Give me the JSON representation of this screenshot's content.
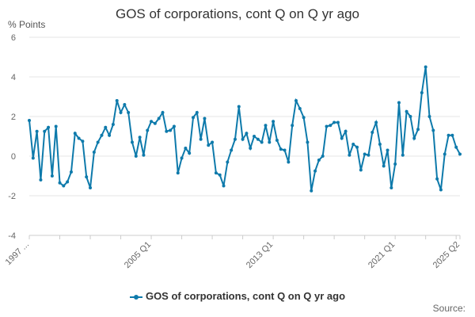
{
  "chart_data": {
    "type": "line",
    "title": "GOS of corporations, cont Q on Q yr ago",
    "ylabel": "% Points",
    "ylim": [
      -4,
      6
    ],
    "yticks": [
      -4,
      -2,
      0,
      2,
      4,
      6
    ],
    "grid": true,
    "color": "#0e7aab",
    "x_tick_labels": [
      "1997 ...",
      "2005 Q1",
      "2013 Q1",
      "2021 Q1",
      "2025 Q2"
    ],
    "x_tick_indices": [
      0,
      32,
      64,
      96,
      113
    ],
    "series": [
      {
        "name": "GOS of corporations, cont Q on Q yr ago",
        "values": [
          1.8,
          -0.1,
          1.25,
          -1.2,
          1.25,
          1.45,
          -1.0,
          1.5,
          -1.35,
          -1.5,
          -1.3,
          -0.8,
          1.15,
          0.9,
          0.75,
          -1.05,
          -1.6,
          0.2,
          0.7,
          1.05,
          1.45,
          1.05,
          1.6,
          2.8,
          2.2,
          2.6,
          2.2,
          0.7,
          0.0,
          0.95,
          0.05,
          1.3,
          1.75,
          1.65,
          1.9,
          2.2,
          1.25,
          1.3,
          1.5,
          -0.85,
          -0.1,
          0.4,
          0.15,
          1.95,
          2.2,
          0.85,
          1.9,
          0.55,
          0.7,
          -0.85,
          -0.95,
          -1.5,
          -0.3,
          0.3,
          0.85,
          2.5,
          0.85,
          1.15,
          0.4,
          1.0,
          0.85,
          0.7,
          1.55,
          0.7,
          1.75,
          0.8,
          0.35,
          0.3,
          -0.3,
          1.55,
          2.8,
          2.4,
          1.95,
          0.7,
          -1.75,
          -0.75,
          -0.2,
          0.0,
          1.5,
          1.55,
          1.7,
          1.7,
          0.9,
          1.25,
          0.05,
          0.6,
          0.45,
          -0.7,
          0.1,
          0.05,
          1.2,
          1.7,
          0.6,
          -0.5,
          0.3,
          -1.6,
          -0.4,
          2.7,
          0.05,
          2.25,
          2.0,
          0.9,
          1.35,
          3.2,
          4.5,
          2.0,
          1.3,
          -1.15,
          -1.7,
          0.1,
          1.05,
          1.05,
          0.45,
          0.1
        ]
      }
    ],
    "source_label": "Source:"
  }
}
